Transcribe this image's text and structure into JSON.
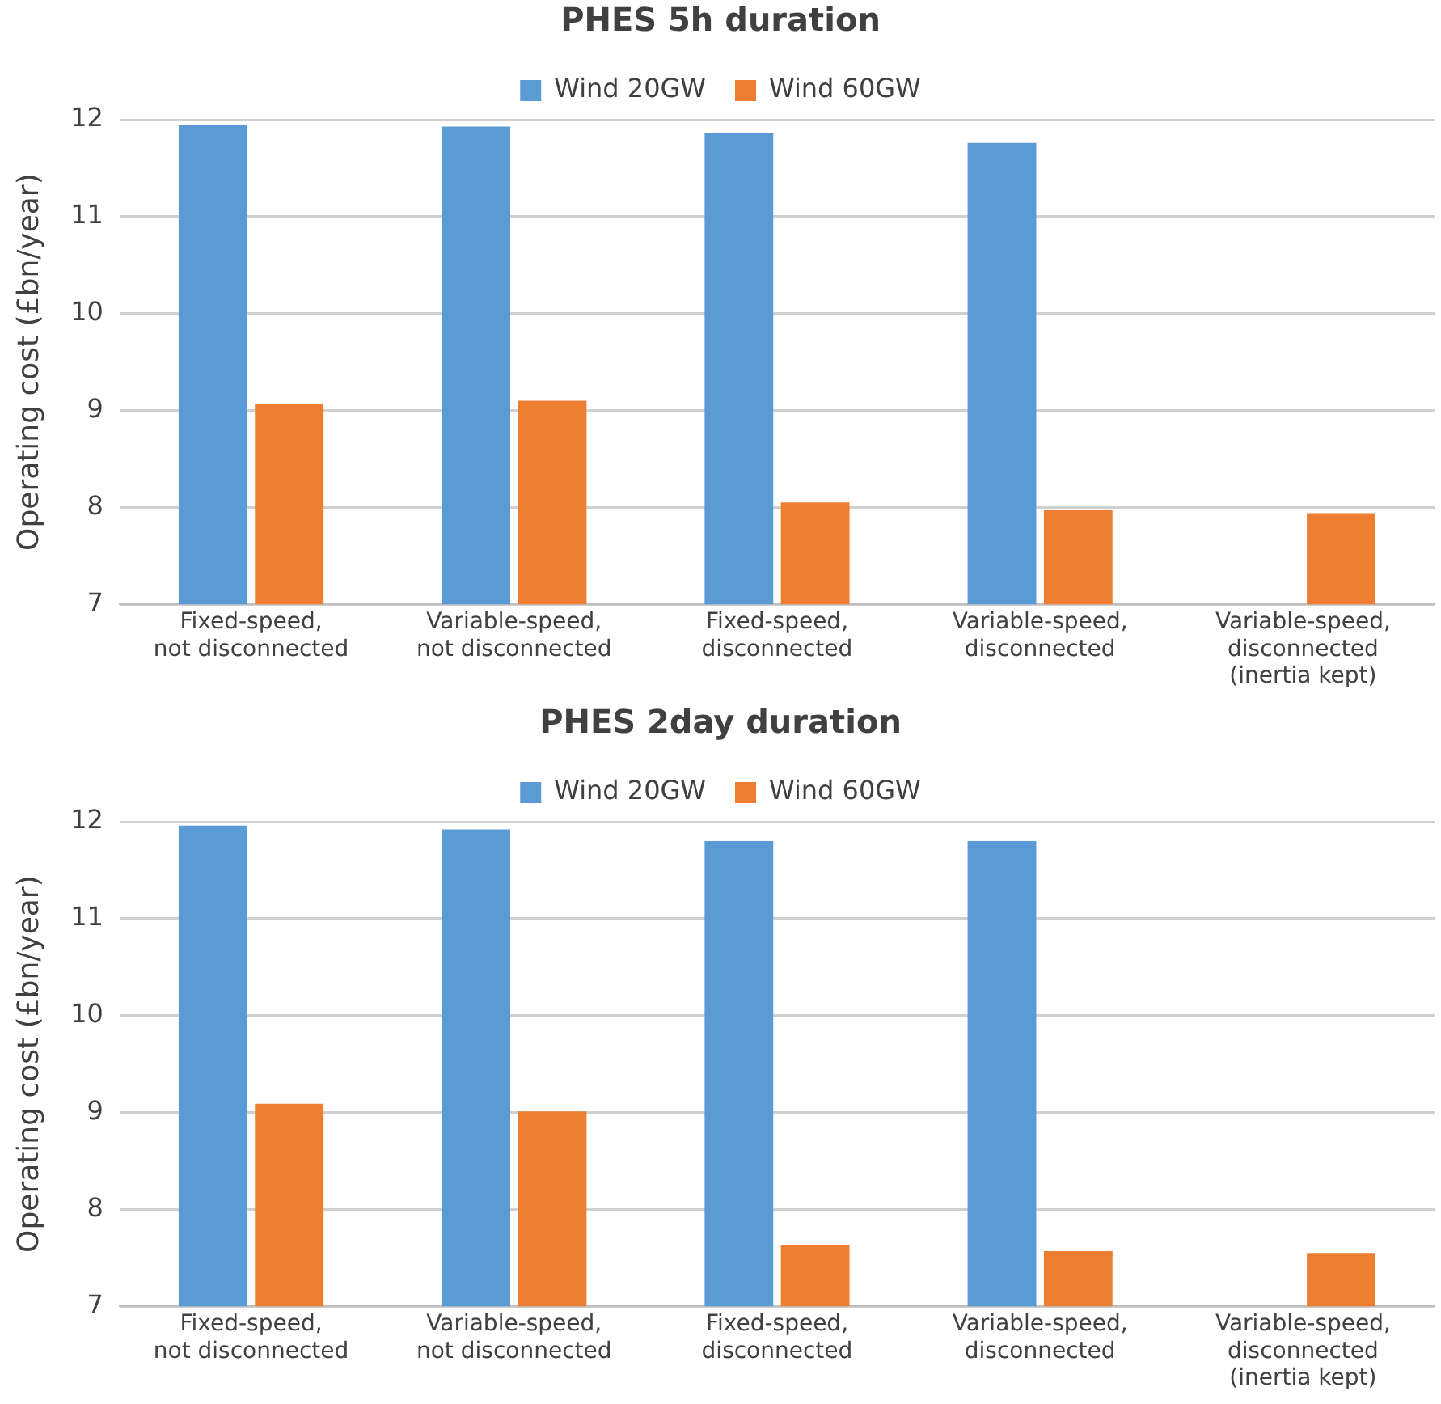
{
  "chart_data": [
    {
      "type": "bar",
      "title": "PHES 5h duration",
      "ylabel": "Operating cost (£bn/year)",
      "categories": [
        "Fixed-speed,\nnot disconnected",
        "Variable-speed,\nnot disconnected",
        "Fixed-speed,\ndisconnected",
        "Variable-speed,\ndisconnected",
        "Variable-speed,\ndisconnected\n(inertia kept)"
      ],
      "series": [
        {
          "name": "Wind 20GW",
          "color": "#5b9bd5",
          "values": [
            11.95,
            11.93,
            11.86,
            11.76,
            null
          ]
        },
        {
          "name": "Wind 60GW",
          "color": "#ed7d31",
          "values": [
            9.07,
            9.1,
            8.05,
            7.97,
            7.94
          ]
        }
      ],
      "ylim": [
        7,
        12
      ],
      "yticks": [
        7,
        8,
        9,
        10,
        11,
        12
      ],
      "grid": "y",
      "legend": "top"
    },
    {
      "type": "bar",
      "title": "PHES 2day duration",
      "ylabel": "Operating cost (£bn/year)",
      "categories": [
        "Fixed-speed,\nnot disconnected",
        "Variable-speed,\nnot disconnected",
        "Fixed-speed,\ndisconnected",
        "Variable-speed,\ndisconnected",
        "Variable-speed,\ndisconnected\n(inertia kept)"
      ],
      "series": [
        {
          "name": "Wind 20GW",
          "color": "#5b9bd5",
          "values": [
            11.96,
            11.92,
            11.8,
            11.8,
            null
          ]
        },
        {
          "name": "Wind 60GW",
          "color": "#ed7d31",
          "values": [
            9.09,
            9.01,
            7.63,
            7.57,
            7.55
          ]
        }
      ],
      "ylim": [
        7,
        12
      ],
      "yticks": [
        7,
        8,
        9,
        10,
        11,
        12
      ],
      "grid": "y",
      "legend": "top"
    }
  ]
}
